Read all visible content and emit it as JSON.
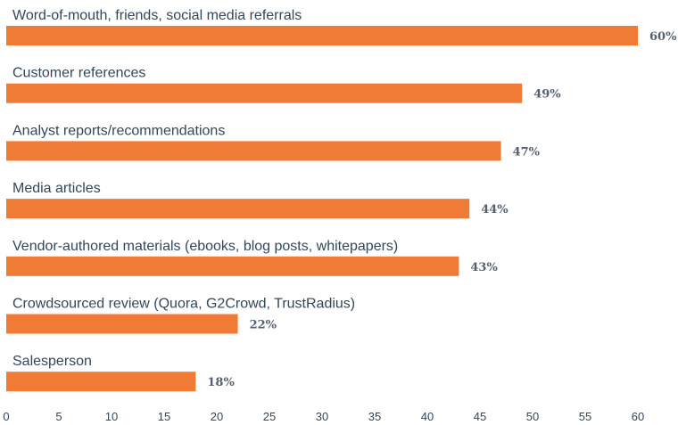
{
  "chart_data": {
    "type": "bar",
    "orientation": "horizontal",
    "categories": [
      "Word-of-mouth, friends, social media referrals",
      "Customer references",
      "Analyst reports/recommendations",
      "Media articles",
      "Vendor-authored materials (ebooks, blog posts, whitepapers)",
      "Crowdsourced review (Quora, G2Crowd, TrustRadius)",
      "Salesperson"
    ],
    "values": [
      60,
      49,
      47,
      44,
      43,
      22,
      18
    ],
    "value_labels": [
      "60%",
      "49%",
      "47%",
      "44%",
      "43%",
      "22%",
      "18%"
    ],
    "x_ticks": [
      "0",
      "5",
      "10",
      "15",
      "20",
      "25",
      "30",
      "35",
      "40",
      "45",
      "50",
      "55",
      "60"
    ],
    "xlim": [
      0,
      60
    ],
    "bar_color": "#f07b36",
    "grid": false,
    "legend": "none",
    "title": "",
    "xlabel": "",
    "ylabel": ""
  }
}
